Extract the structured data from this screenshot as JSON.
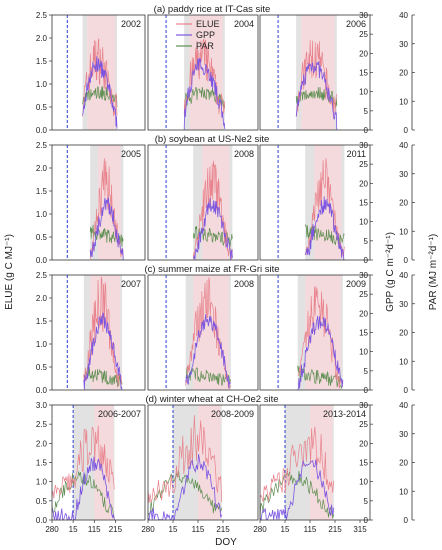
{
  "chart_data": {
    "type": "line",
    "xlabel": "DOY",
    "ylabel_left": "ELUE (g C MJ⁻¹)",
    "ylabel_gpp": "GPP (g C m⁻²d⁻¹)",
    "ylabel_par": "PAR (MJ m⁻²d⁻¹)",
    "legend": [
      "ELUE",
      "GPP",
      "PAR"
    ],
    "colors": {
      "ELUE": "#e8828c",
      "GPP": "#7b55e0",
      "PAR": "#5f8f52",
      "grey_band": "#e2e2e2",
      "pink_band": "#f7d8dc",
      "doy_marker": "#2a3fd0"
    },
    "rows": [
      {
        "title": "(a) paddy rice at IT-Cas site",
        "elue_ylim": [
          0,
          2.5
        ],
        "elue_ticks": [
          "0.0",
          "0.5",
          "1.0",
          "1.5",
          "2.0",
          "2.5"
        ],
        "gpp_ylim": [
          0,
          30
        ],
        "gpp_ticks": [
          "0",
          "5",
          "10",
          "15",
          "20",
          "25",
          "30"
        ],
        "par_ylim": [
          0,
          40
        ],
        "par_ticks": [
          "0",
          "10",
          "20",
          "30",
          "40"
        ],
        "x_ticks": [],
        "panels": [
          {
            "label": "2002",
            "x_range": [
              0,
              365
            ],
            "marker_x": 60,
            "grey": [
              120,
              255
            ],
            "pink": [
              138,
              248
            ],
            "season": [
              120,
              255
            ],
            "kind": "rice"
          },
          {
            "label": "2004",
            "x_range": [
              0,
              365
            ],
            "marker_x": 60,
            "grey": [
              120,
              255
            ],
            "pink": [
              138,
              248
            ],
            "season": [
              120,
              255
            ],
            "kind": "rice"
          },
          {
            "label": "2006",
            "x_range": [
              0,
              365
            ],
            "marker_x": 60,
            "grey": [
              120,
              255
            ],
            "pink": [
              138,
              248
            ],
            "season": [
              120,
              255
            ],
            "kind": "rice"
          }
        ]
      },
      {
        "title": "(b) soybean  at US-Ne2 site",
        "elue_ylim": [
          0,
          2.5
        ],
        "elue_ticks": [
          "0.0",
          "0.5",
          "1.0",
          "1.5",
          "2.0",
          "2.5"
        ],
        "gpp_ylim": [
          0,
          30
        ],
        "gpp_ticks": [
          "0",
          "5",
          "10",
          "15",
          "20",
          "25",
          "30"
        ],
        "par_ylim": [
          0,
          40
        ],
        "par_ticks": [
          "0",
          "10",
          "20",
          "30",
          "40"
        ],
        "x_ticks": [],
        "panels": [
          {
            "label": "2005",
            "x_range": [
              0,
              365
            ],
            "marker_x": 60,
            "grey": [
              150,
              280
            ],
            "pink": [
              180,
              270
            ],
            "season": [
              150,
              280
            ],
            "kind": "soy"
          },
          {
            "label": "2008",
            "x_range": [
              0,
              365
            ],
            "marker_x": 60,
            "grey": [
              150,
              280
            ],
            "pink": [
              180,
              270
            ],
            "season": [
              150,
              280
            ],
            "kind": "soy"
          },
          {
            "label": "2011",
            "x_range": [
              0,
              365
            ],
            "marker_x": 60,
            "grey": [
              150,
              280
            ],
            "pink": [
              180,
              270
            ],
            "season": [
              150,
              280
            ],
            "kind": "soy"
          }
        ]
      },
      {
        "title": "(c) summer  maize at FR-Gri site",
        "elue_ylim": [
          0,
          2.5
        ],
        "elue_ticks": [
          "0.0",
          "0.5",
          "1.0",
          "1.5",
          "2.0",
          "2.5"
        ],
        "gpp_ylim": [
          0,
          30
        ],
        "gpp_ticks": [
          "0",
          "5",
          "10",
          "15",
          "20",
          "25",
          "30"
        ],
        "par_ylim": [
          0,
          40
        ],
        "par_ticks": [
          "0",
          "10",
          "20",
          "30",
          "40"
        ],
        "x_ticks": [],
        "panels": [
          {
            "label": "2007",
            "x_range": [
              0,
              365
            ],
            "marker_x": 60,
            "grey": [
              125,
              275
            ],
            "pink": [
              150,
              268
            ],
            "season": [
              125,
              275
            ],
            "kind": "maize"
          },
          {
            "label": "2008",
            "x_range": [
              0,
              365
            ],
            "marker_x": 60,
            "grey": [
              125,
              275
            ],
            "pink": [
              150,
              268
            ],
            "season": [
              125,
              275
            ],
            "kind": "maize"
          },
          {
            "label": "2009",
            "x_range": [
              0,
              365
            ],
            "marker_x": 60,
            "grey": [
              125,
              275
            ],
            "pink": [
              150,
              268
            ],
            "season": [
              125,
              275
            ],
            "kind": "maize"
          }
        ]
      },
      {
        "title": "(d) winter wheat at CH-Oe2 site",
        "elue_ylim": [
          0,
          3.0
        ],
        "elue_ticks": [
          "0.0",
          "0.5",
          "1.0",
          "1.5",
          "2.0",
          "2.5",
          "3.0"
        ],
        "gpp_ylim": [
          0,
          30
        ],
        "gpp_ticks": [
          "0",
          "5",
          "10",
          "15",
          "20",
          "25",
          "30"
        ],
        "par_ylim": [
          0,
          40
        ],
        "par_ticks": [
          "0",
          "10",
          "20",
          "30",
          "40"
        ],
        "x_ticks": [
          "280",
          "15",
          "115",
          "215",
          "315"
        ],
        "panels": [
          {
            "label": "2006-2007",
            "x_range": [
              0,
              440
            ],
            "marker_x": 100,
            "grey": [
              100,
              295
            ],
            "pink": [
              200,
              290
            ],
            "season": [
              0,
              295
            ],
            "kind": "wheat"
          },
          {
            "label": "2008-2009",
            "x_range": [
              0,
              440
            ],
            "marker_x": 100,
            "grey": [
              100,
              295
            ],
            "pink": [
              200,
              290
            ],
            "season": [
              0,
              295
            ],
            "kind": "wheat"
          },
          {
            "label": "2013-2014",
            "x_range": [
              0,
              440
            ],
            "marker_x": 100,
            "grey": [
              100,
              295
            ],
            "pink": [
              200,
              290
            ],
            "season": [
              0,
              295
            ],
            "kind": "wheat"
          }
        ]
      }
    ]
  }
}
